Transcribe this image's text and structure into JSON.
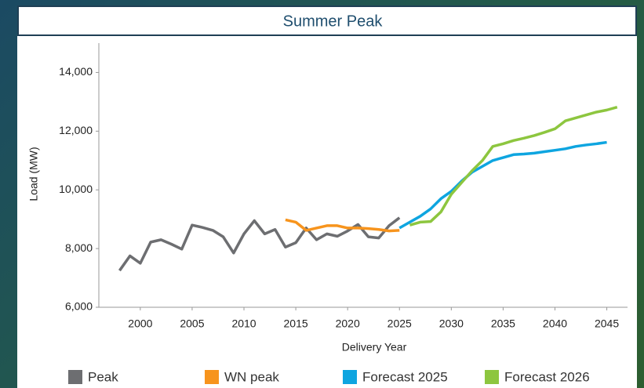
{
  "chart_data": {
    "type": "line",
    "title": "Summer Peak",
    "x_label": "Delivery Year",
    "y_label": "Load (MW)",
    "x": [
      1998,
      1999,
      2000,
      2001,
      2002,
      2003,
      2004,
      2005,
      2006,
      2007,
      2008,
      2009,
      2010,
      2011,
      2012,
      2013,
      2014,
      2015,
      2016,
      2017,
      2018,
      2019,
      2020,
      2021,
      2022,
      2023,
      2024,
      2025,
      2026,
      2027,
      2028,
      2029,
      2030,
      2031,
      2032,
      2033,
      2034,
      2035,
      2036,
      2037,
      2038,
      2039,
      2040,
      2041,
      2042,
      2043,
      2044,
      2045,
      2046
    ],
    "series": [
      {
        "name": "Peak",
        "color": "#6d6e71",
        "values": [
          7250,
          7750,
          7500,
          8220,
          8300,
          8150,
          7980,
          8800,
          8720,
          8620,
          8400,
          7850,
          8500,
          8950,
          8500,
          8650,
          8050,
          8200,
          8700,
          8300,
          8500,
          8420,
          8600,
          8820,
          8400,
          8360,
          8780,
          9050,
          null,
          null,
          null,
          null,
          null,
          null,
          null,
          null,
          null,
          null,
          null,
          null,
          null,
          null,
          null,
          null,
          null,
          null,
          null,
          null,
          null
        ]
      },
      {
        "name": "WN peak",
        "color": "#f7941d",
        "values": [
          null,
          null,
          null,
          null,
          null,
          null,
          null,
          null,
          null,
          null,
          null,
          null,
          null,
          null,
          null,
          null,
          8980,
          8900,
          8620,
          8700,
          8780,
          8780,
          8700,
          8700,
          8680,
          8650,
          8600,
          8620,
          null,
          null,
          null,
          null,
          null,
          null,
          null,
          null,
          null,
          null,
          null,
          null,
          null,
          null,
          null,
          null,
          null,
          null,
          null,
          null,
          null
        ]
      },
      {
        "name": "Forecast 2025",
        "color": "#0ea5e0",
        "values": [
          null,
          null,
          null,
          null,
          null,
          null,
          null,
          null,
          null,
          null,
          null,
          null,
          null,
          null,
          null,
          null,
          null,
          null,
          null,
          null,
          null,
          null,
          null,
          null,
          null,
          null,
          null,
          8700,
          8900,
          9100,
          9350,
          9700,
          9950,
          10300,
          10600,
          10800,
          11000,
          11100,
          11200,
          11220,
          11250,
          11300,
          11350,
          11400,
          11480,
          11530,
          11570,
          11620,
          null
        ]
      },
      {
        "name": "Forecast 2026",
        "color": "#8dc63f",
        "values": [
          null,
          null,
          null,
          null,
          null,
          null,
          null,
          null,
          null,
          null,
          null,
          null,
          null,
          null,
          null,
          null,
          null,
          null,
          null,
          null,
          null,
          null,
          null,
          null,
          null,
          null,
          null,
          null,
          8800,
          8900,
          8920,
          9250,
          9850,
          10250,
          10650,
          11000,
          11480,
          11570,
          11680,
          11760,
          11850,
          11960,
          12080,
          12350,
          12450,
          12550,
          12650,
          12720,
          12820
        ]
      }
    ],
    "xlim": [
      1996,
      2047
    ],
    "xticks": [
      2000,
      2005,
      2010,
      2015,
      2020,
      2025,
      2030,
      2035,
      2040,
      2045
    ],
    "ylim": [
      6000,
      15000
    ],
    "yticks": [
      {
        "value": 6000,
        "label": "6,000"
      },
      {
        "value": 8000,
        "label": "8,000"
      },
      {
        "value": 10000,
        "label": "10,000"
      },
      {
        "value": 12000,
        "label": "12,000"
      },
      {
        "value": 14000,
        "label": "14,000"
      }
    ],
    "legend": "bottom"
  }
}
